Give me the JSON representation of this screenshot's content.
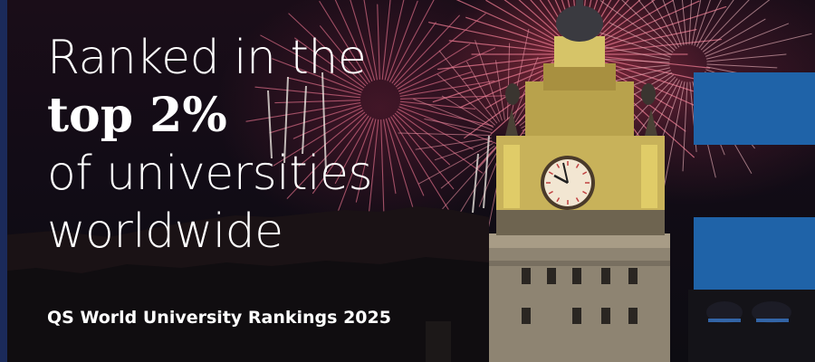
{
  "headline": {
    "line1": "Ranked in the",
    "line2": "top 2%",
    "line3": "of universities",
    "line4": "worldwide"
  },
  "source": "QS World University Rankings 2025",
  "colors": {
    "accent_blue": "#1f63a8",
    "stripe_navy": "#1b2a5a",
    "text": "#ffffff"
  },
  "icons": {
    "photo": "clock-tower-fireworks-photo"
  }
}
